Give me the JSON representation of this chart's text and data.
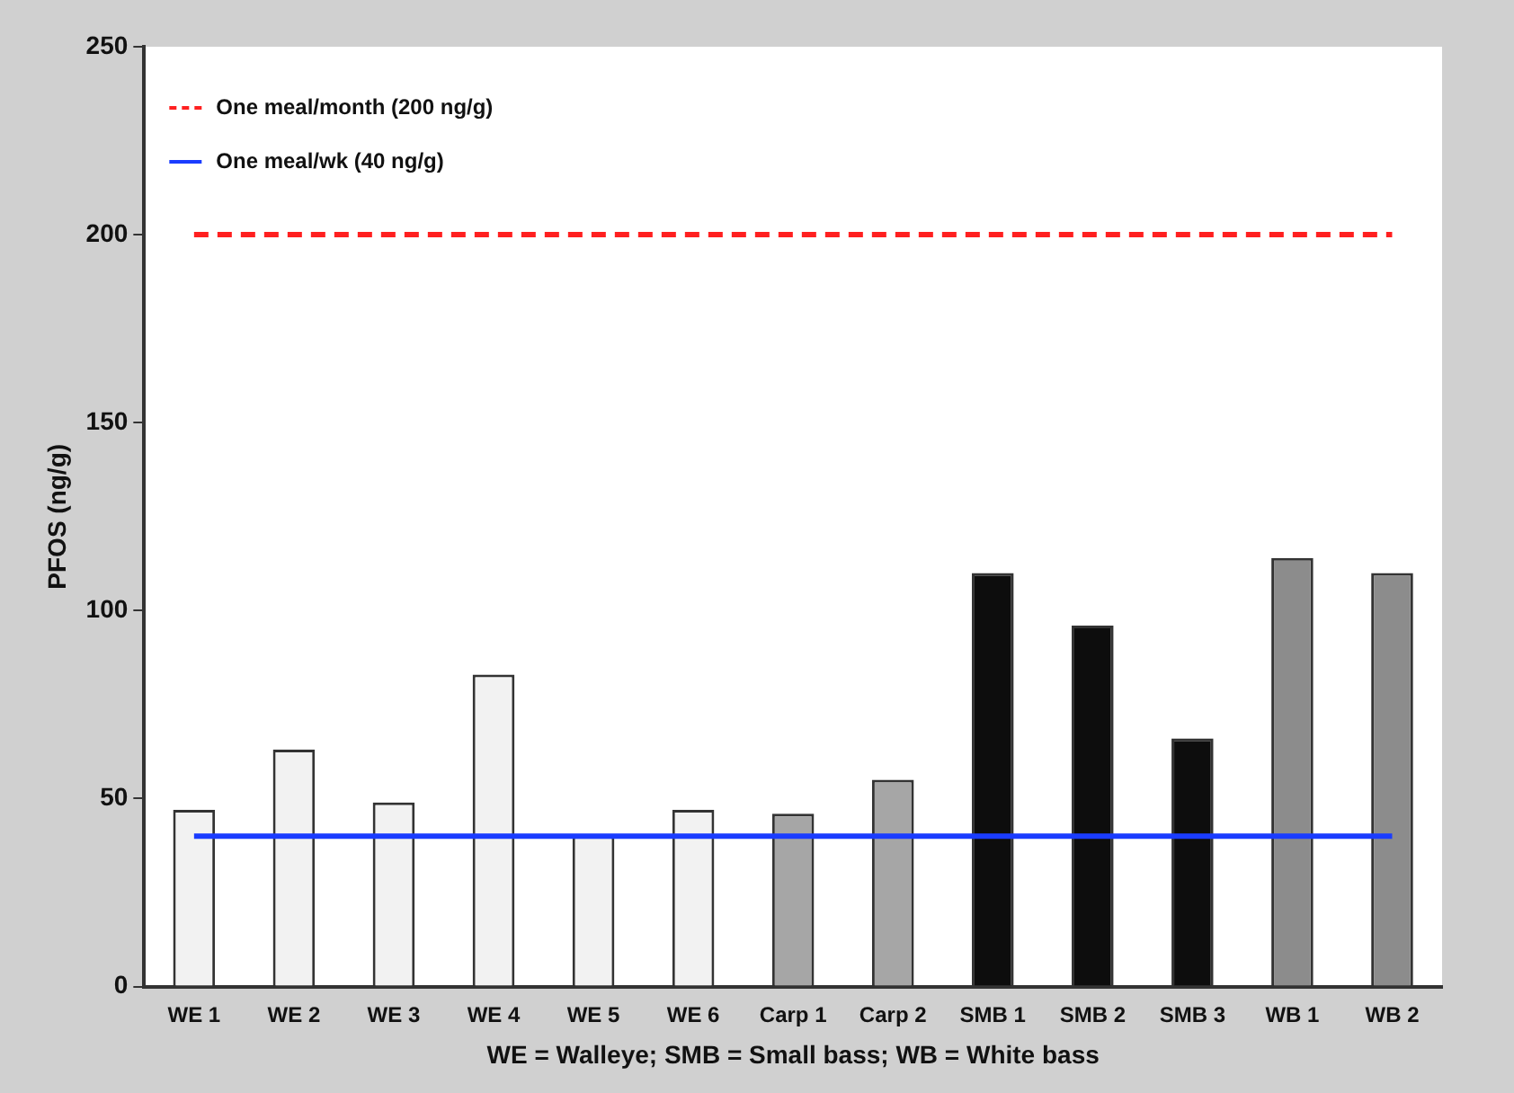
{
  "chart_data": {
    "type": "bar",
    "xlabel": "WE = Walleye; SMB = Small bass; WB = White bass",
    "ylabel": "PFOS (ng/g)",
    "categories": [
      "WE 1",
      "WE 2",
      "WE 3",
      "WE 4",
      "WE 5",
      "WE 6",
      "Carp 1",
      "Carp 2",
      "SMB 1",
      "SMB 2",
      "SMB 3",
      "WB 1",
      "WB 2"
    ],
    "values": [
      47,
      63,
      49,
      83,
      40,
      47,
      46,
      55,
      110,
      96,
      66,
      114,
      110
    ],
    "colors": [
      "#f2f2f2",
      "#f2f2f2",
      "#f2f2f2",
      "#f2f2f2",
      "#f2f2f2",
      "#f2f2f2",
      "#a6a6a6",
      "#a6a6a6",
      "#0d0d0d",
      "#0d0d0d",
      "#0d0d0d",
      "#8c8c8c",
      "#8c8c8c"
    ],
    "ylim": [
      0,
      250
    ],
    "yticks": [
      0,
      50,
      100,
      150,
      200,
      250
    ],
    "grid": false,
    "legend": "top left",
    "ref_lines": [
      {
        "axis": "y",
        "value": 200,
        "label": "One meal/month (200 ng/g)",
        "color": "#ff2020",
        "line_style": "dashed"
      },
      {
        "axis": "y",
        "value": 40,
        "label": "One meal/wk (40 ng/g)",
        "color": "#1a3cff",
        "line_style": "solid"
      }
    ]
  }
}
